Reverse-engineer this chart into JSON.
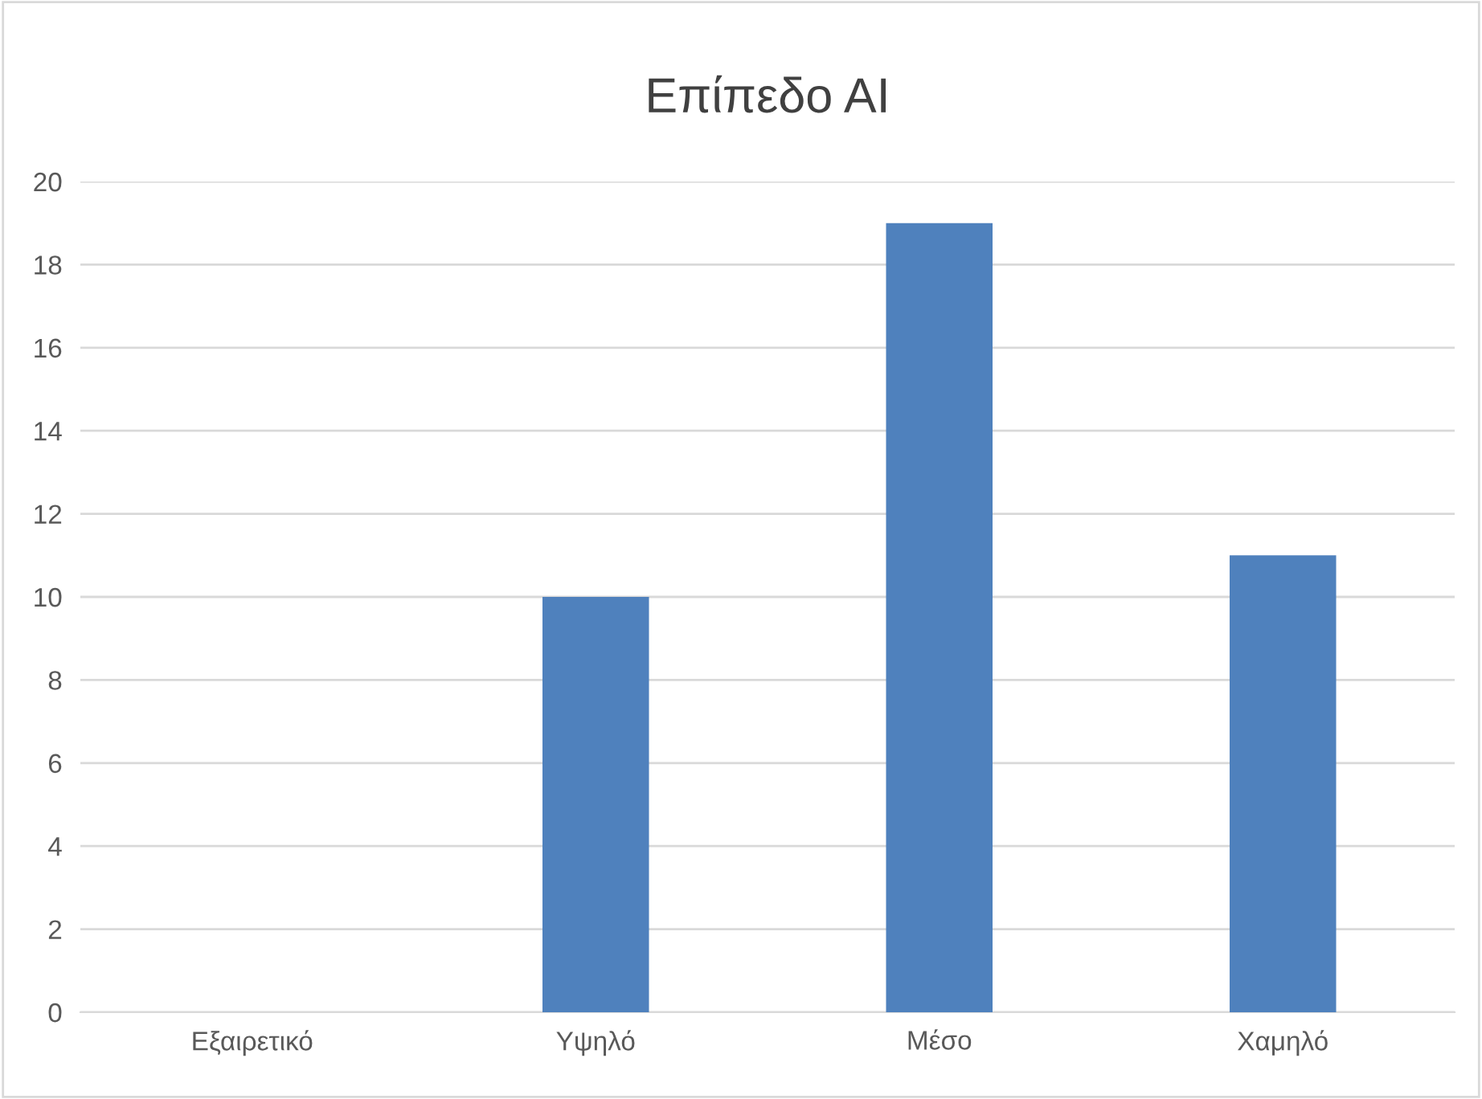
{
  "chart_data": {
    "type": "bar",
    "title": "Επίπεδο AI",
    "categories": [
      "Εξαιρετικό",
      "Υψηλό",
      "Μέσο",
      "Χαμηλό"
    ],
    "values": [
      0,
      10,
      19,
      11
    ],
    "color": "#4f81bd",
    "ylim": [
      0,
      20
    ],
    "yticks": [
      0,
      2,
      4,
      6,
      8,
      10,
      12,
      14,
      16,
      18,
      20
    ],
    "grid": "y",
    "legend": false
  }
}
